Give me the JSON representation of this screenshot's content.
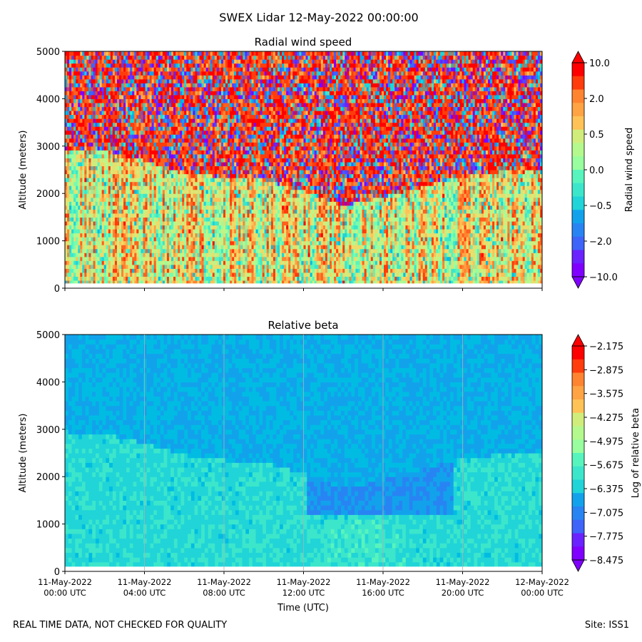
{
  "figure": {
    "suptitle": "SWEX Lidar 12-May-2022 00:00:00",
    "footer_left": "REAL TIME DATA, NOT CHECKED FOR QUALITY",
    "footer_right": "Site: ISS1"
  },
  "chart_data": [
    {
      "type": "heatmap",
      "title": "Radial wind speed",
      "ylabel": "Altitude (meters)",
      "xlabel": "",
      "ylim": [
        0,
        5000
      ],
      "yticks": [
        0,
        1000,
        2000,
        3000,
        4000,
        5000
      ],
      "x_hours": [
        0,
        4,
        8,
        12,
        16,
        20,
        24
      ],
      "colorbar": {
        "label": "Radial wind speed",
        "tick_labels": [
          "10.0",
          "2.0",
          "0.5",
          "0.0",
          "−0.5",
          "−2.0",
          "−10.0"
        ],
        "levels": 16,
        "extend": "both"
      },
      "description_values": {
        "boundary_layer_top_m": [
          2900,
          2850,
          2650,
          2400,
          2300,
          2250,
          2000,
          1700,
          1900,
          2100,
          2350,
          2500
        ],
        "boundary_layer_hours": [
          0,
          2,
          4,
          6,
          8,
          10,
          12,
          14,
          16,
          18,
          20,
          24
        ]
      }
    },
    {
      "type": "heatmap",
      "title": "Relative beta",
      "ylabel": "Altitude (meters)",
      "xlabel": "Time (UTC)",
      "ylim": [
        0,
        5000
      ],
      "yticks": [
        0,
        1000,
        2000,
        3000,
        4000,
        5000
      ],
      "x_hours": [
        0,
        4,
        8,
        12,
        16,
        20,
        24
      ],
      "xtick_labels": [
        [
          "11-May-2022",
          "00:00 UTC"
        ],
        [
          "11-May-2022",
          "04:00 UTC"
        ],
        [
          "11-May-2022",
          "08:00 UTC"
        ],
        [
          "11-May-2022",
          "12:00 UTC"
        ],
        [
          "11-May-2022",
          "16:00 UTC"
        ],
        [
          "11-May-2022",
          "20:00 UTC"
        ],
        [
          "12-May-2022",
          "00:00 UTC"
        ]
      ],
      "colorbar": {
        "label": "Log of relative beta",
        "tick_labels": [
          "−2.175",
          "−2.875",
          "−3.575",
          "−4.275",
          "−4.975",
          "−5.675",
          "−6.375",
          "−7.075",
          "−7.775",
          "−8.475"
        ],
        "levels": 16,
        "extend": "both"
      }
    }
  ],
  "colormap_rainbow": [
    "#8000ff",
    "#6a22fe",
    "#5444fd",
    "#3e64f9",
    "#2884f3",
    "#12a2ec",
    "#00bce3",
    "#20d4d8",
    "#3ce6cb",
    "#58f4bd",
    "#78fcae",
    "#98fe9e",
    "#b4f98e",
    "#d0ed7c",
    "#ecdc6a",
    "#ffc257",
    "#ffa344",
    "#ff8431",
    "#ff611e",
    "#ff3c0c",
    "#ff0000"
  ]
}
